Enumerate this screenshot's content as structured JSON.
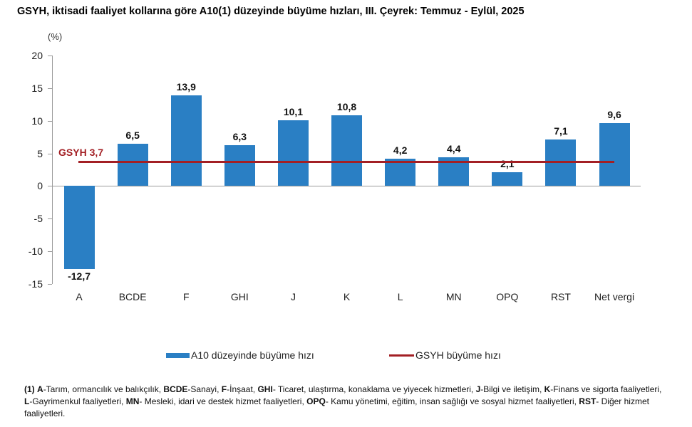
{
  "title": "GSYH, iktisadi faaliyet kollarına göre A10(1) düzeyinde büyüme hızları, III. Çeyrek: Temmuz - Eylül, 2025",
  "chart_data": {
    "type": "bar",
    "title": "GSYH, iktisadi faaliyet kollarına göre A10(1) düzeyinde büyüme hızları, III. Çeyrek: Temmuz - Eylül, 2025",
    "xlabel": "",
    "ylabel": "(%)",
    "ylim": [
      -15,
      20
    ],
    "yticks": [
      20,
      15,
      10,
      5,
      0,
      -5,
      -10,
      -15
    ],
    "categories": [
      "A",
      "BCDE",
      "F",
      "GHI",
      "J",
      "K",
      "L",
      "MN",
      "OPQ",
      "RST",
      "Net vergi"
    ],
    "series": [
      {
        "name": "A10 düzeyinde büyüme hızı",
        "type": "bar",
        "color": "#2a7fc4",
        "values": [
          -12.7,
          6.5,
          13.9,
          6.3,
          10.1,
          10.8,
          4.2,
          4.4,
          2.1,
          7.1,
          9.6
        ],
        "labels": [
          "-12,7",
          "6,5",
          "13,9",
          "6,3",
          "10,1",
          "10,8",
          "4,2",
          "4,4",
          "2,1",
          "7,1",
          "9,6"
        ]
      },
      {
        "name": "GSYH büyüme hızı",
        "type": "line",
        "color": "#a31f24",
        "value": 3.7,
        "annotation": "GSYH 3,7"
      }
    ],
    "legend_position": "bottom",
    "grid": false
  },
  "axis": {
    "unit": "(%)",
    "ticks": [
      "20",
      "15",
      "10",
      "5",
      "0",
      "-5",
      "-10",
      "-15"
    ]
  },
  "bars": [
    {
      "cat": "A",
      "label": "-12,7"
    },
    {
      "cat": "BCDE",
      "label": "6,5"
    },
    {
      "cat": "F",
      "label": "13,9"
    },
    {
      "cat": "GHI",
      "label": "6,3"
    },
    {
      "cat": "J",
      "label": "10,1"
    },
    {
      "cat": "K",
      "label": "10,8"
    },
    {
      "cat": "L",
      "label": "4,2"
    },
    {
      "cat": "MN",
      "label": "4,4"
    },
    {
      "cat": "OPQ",
      "label": "2,1"
    },
    {
      "cat": "RST",
      "label": "7,1"
    },
    {
      "cat": "Net vergi",
      "label": "9,6"
    }
  ],
  "gsyh_label": "GSYH 3,7",
  "legend": {
    "bar_label": "A10 düzeyinde büyüme hızı",
    "line_label": "GSYH büyüme hızı"
  },
  "footnote": {
    "n": "(1)",
    "items": [
      {
        "code": "A",
        "text": "-Tarım, ormancılık ve balıkçılık, "
      },
      {
        "code": "BCDE",
        "text": "-Sanayi, "
      },
      {
        "code": "F",
        "text": "-İnşaat, "
      },
      {
        "code": "GHI",
        "text": "- Ticaret, ulaştırma, konaklama ve yiyecek hizmetleri, "
      },
      {
        "code": "J",
        "text": "-Bilgi ve iletişim, "
      },
      {
        "code": "K",
        "text": "-Finans ve sigorta faaliyetleri, "
      },
      {
        "code": "L",
        "text": "-Gayrimenkul faaliyetleri, "
      },
      {
        "code": "MN",
        "text": "- Mesleki, idari ve destek hizmet faaliyetleri, "
      },
      {
        "code": "OPQ",
        "text": "- Kamu yönetimi, eğitim, insan sağlığı ve sosyal hizmet faaliyetleri, "
      },
      {
        "code": "RST",
        "text": "- Diğer hizmet faaliyetleri."
      }
    ]
  }
}
